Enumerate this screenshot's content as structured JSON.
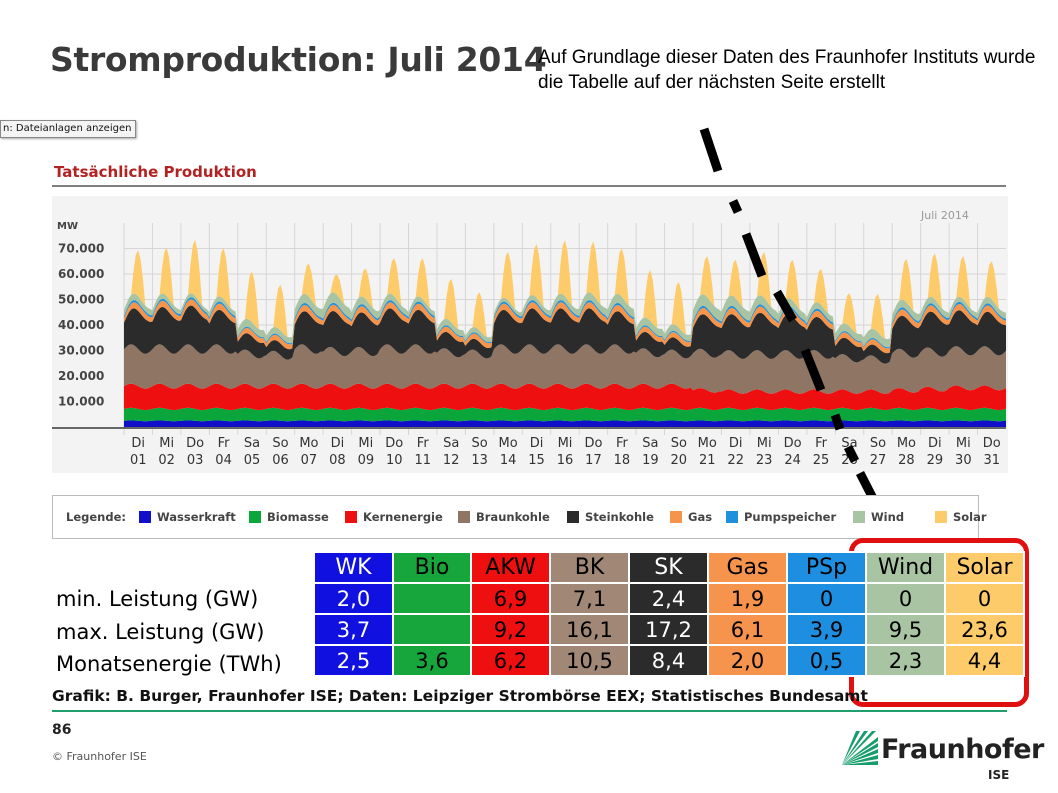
{
  "slide": {
    "title": "Stromproduktion: Juli 2014",
    "annotation": "Auf Grundlage dieser Daten des Fraunhofer Instituts wurde die Tabelle auf der nächsten Seite erstellt",
    "tooltip": "n: Dateianlagen anzeigen",
    "source": "Grafik: B. Burger, Fraunhofer ISE; Daten: Leipziger Strombörse EEX; Statistisches Bundesamt",
    "page_number": "86",
    "copyright": "© Fraunhofer ISE",
    "brand": {
      "name": "Fraunhofer",
      "sub": "ISE"
    }
  },
  "chart_data": {
    "type": "area",
    "title": "Tatsächliche Produktion",
    "period_label": "Juli 2014",
    "ylabel": "MW",
    "ylim": [
      0,
      80000
    ],
    "yticks": [
      "70.000",
      "60.000",
      "50.000",
      "40.000",
      "30.000",
      "20.000",
      "10.000"
    ],
    "ytick_values": [
      70000,
      60000,
      50000,
      40000,
      30000,
      20000,
      10000
    ],
    "grid": true,
    "x_days": [
      {
        "wd": "Di",
        "d": "01"
      },
      {
        "wd": "Mi",
        "d": "02"
      },
      {
        "wd": "Do",
        "d": "03"
      },
      {
        "wd": "Fr",
        "d": "04"
      },
      {
        "wd": "Sa",
        "d": "05"
      },
      {
        "wd": "So",
        "d": "06"
      },
      {
        "wd": "Mo",
        "d": "07"
      },
      {
        "wd": "Di",
        "d": "08"
      },
      {
        "wd": "Mi",
        "d": "09"
      },
      {
        "wd": "Do",
        "d": "10"
      },
      {
        "wd": "Fr",
        "d": "11"
      },
      {
        "wd": "Sa",
        "d": "12"
      },
      {
        "wd": "So",
        "d": "13"
      },
      {
        "wd": "Mo",
        "d": "14"
      },
      {
        "wd": "Di",
        "d": "15"
      },
      {
        "wd": "Mi",
        "d": "16"
      },
      {
        "wd": "Do",
        "d": "17"
      },
      {
        "wd": "Fr",
        "d": "18"
      },
      {
        "wd": "Sa",
        "d": "19"
      },
      {
        "wd": "So",
        "d": "20"
      },
      {
        "wd": "Mo",
        "d": "21"
      },
      {
        "wd": "Di",
        "d": "22"
      },
      {
        "wd": "Mi",
        "d": "23"
      },
      {
        "wd": "Do",
        "d": "24"
      },
      {
        "wd": "Fr",
        "d": "25"
      },
      {
        "wd": "Sa",
        "d": "26"
      },
      {
        "wd": "So",
        "d": "27"
      },
      {
        "wd": "Mo",
        "d": "28"
      },
      {
        "wd": "Di",
        "d": "29"
      },
      {
        "wd": "Mi",
        "d": "30"
      },
      {
        "wd": "Do",
        "d": "31"
      }
    ],
    "legend_title": "Legende:",
    "legend_placement": "bottom",
    "series": [
      {
        "name": "Wasserkraft",
        "color": "#1010c8",
        "daily_mw": [
          2500,
          2500,
          2500,
          2500,
          2500,
          2500,
          2500,
          2500,
          2500,
          2500,
          2500,
          2500,
          2500,
          2500,
          2500,
          2500,
          2500,
          2500,
          2500,
          2500,
          2500,
          2500,
          2500,
          2500,
          2500,
          2500,
          2500,
          2500,
          2500,
          2500,
          2500
        ]
      },
      {
        "name": "Biomasse",
        "color": "#0aa63c",
        "daily_mw": [
          4800,
          4800,
          4800,
          4800,
          4800,
          4800,
          4800,
          4800,
          4800,
          4800,
          4800,
          4800,
          4800,
          4800,
          4800,
          4800,
          4800,
          4800,
          4800,
          4800,
          4800,
          4800,
          4800,
          4800,
          4800,
          4800,
          4800,
          4800,
          4800,
          4800,
          4800
        ]
      },
      {
        "name": "Kernenergie",
        "color": "#ee1010",
        "daily_mw": [
          9200,
          9200,
          9200,
          9200,
          9200,
          9200,
          9200,
          9200,
          9200,
          9200,
          9200,
          9200,
          9200,
          9200,
          9200,
          9200,
          9200,
          9200,
          9200,
          9200,
          7500,
          7000,
          7000,
          7000,
          7000,
          7000,
          7000,
          7500,
          8000,
          8500,
          8500
        ]
      },
      {
        "name": "Braunkohle",
        "color": "#8f7563",
        "daily_mw": [
          15000,
          15000,
          15000,
          15000,
          13000,
          12500,
          15000,
          14000,
          14000,
          15000,
          15000,
          13500,
          13000,
          15000,
          15000,
          15000,
          15000,
          15000,
          13500,
          13000,
          15000,
          15000,
          15000,
          15000,
          15000,
          13500,
          13000,
          15000,
          15000,
          15000,
          15000
        ]
      },
      {
        "name": "Steinkohle",
        "color": "#2b2b2b",
        "daily_mw": [
          13000,
          13500,
          14000,
          12500,
          6000,
          4000,
          12000,
          13000,
          12500,
          13000,
          12500,
          6000,
          4000,
          12500,
          13000,
          13000,
          13000,
          12000,
          6000,
          4500,
          12500,
          13000,
          13500,
          13000,
          12000,
          6000,
          4000,
          12000,
          13000,
          13000,
          12500
        ]
      },
      {
        "name": "Gas",
        "color": "#f5944a",
        "daily_mw": [
          2200,
          2200,
          2200,
          2200,
          1900,
          1900,
          2200,
          2200,
          2200,
          2200,
          2200,
          1900,
          1900,
          2200,
          2200,
          2200,
          2200,
          2200,
          1900,
          1900,
          2200,
          2200,
          2200,
          2200,
          2200,
          1900,
          1900,
          2200,
          2200,
          2200,
          2200
        ]
      },
      {
        "name": "Pumpspeicher",
        "color": "#1e90dc",
        "daily_mw": [
          800,
          800,
          800,
          800,
          500,
          500,
          800,
          800,
          800,
          800,
          800,
          500,
          500,
          800,
          800,
          800,
          800,
          800,
          500,
          500,
          800,
          800,
          800,
          800,
          800,
          500,
          500,
          800,
          800,
          800,
          800
        ]
      },
      {
        "name": "Wind",
        "color": "#a9c4a2",
        "daily_mw": [
          2500,
          2000,
          1500,
          2000,
          3000,
          2500,
          3500,
          4000,
          3000,
          2500,
          2000,
          2500,
          2000,
          1500,
          2000,
          2500,
          3000,
          3500,
          3000,
          2500,
          4500,
          4000,
          3500,
          3000,
          2500,
          3000,
          3500,
          3000,
          2500,
          2000,
          2500
        ]
      },
      {
        "name": "Solar",
        "color": "#fdcb6a",
        "daily_peak_mw": [
          18000,
          19000,
          22000,
          20000,
          20000,
          18000,
          13000,
          8000,
          12000,
          15000,
          16000,
          17000,
          15000,
          19000,
          21000,
          22000,
          21000,
          19000,
          20000,
          18000,
          16000,
          15000,
          18000,
          16000,
          14000,
          13000,
          15000,
          17000,
          18000,
          17000,
          15000
        ]
      }
    ]
  },
  "table": {
    "headers": [
      "WK",
      "Bio",
      "AKW",
      "BK",
      "SK",
      "Gas",
      "PSp",
      "Wind",
      "Solar"
    ],
    "header_colors": [
      "#1010e0",
      "#17a63c",
      "#ee1010",
      "#a08776",
      "#2b2b2b",
      "#f6934c",
      "#1e8fe0",
      "#a9c4a2",
      "#fdcb6a"
    ],
    "header_text_colors": [
      "#ffffff",
      "#000000",
      "#000000",
      "#000000",
      "#ffffff",
      "#000000",
      "#000000",
      "#000000",
      "#000000"
    ],
    "cell_colors": [
      "#1010e0",
      "#17a63c",
      "#ee1010",
      "#a08776",
      "#2b2b2b",
      "#f6934c",
      "#1e8fe0",
      "#a9c4a2",
      "#fdcb6a"
    ],
    "cell_text_colors": [
      "#ffffff",
      "#000000",
      "#000000",
      "#000000",
      "#ffffff",
      "#000000",
      "#000000",
      "#000000",
      "#000000"
    ],
    "rows": [
      {
        "label": "min. Leistung (GW)",
        "values": [
          "2,0",
          "",
          "6,9",
          "7,1",
          "2,4",
          "1,9",
          "0",
          "0",
          "0"
        ]
      },
      {
        "label": "max. Leistung (GW)",
        "values": [
          "3,7",
          "",
          "9,2",
          "16,1",
          "17,2",
          "6,1",
          "3,9",
          "9,5",
          "23,6"
        ]
      },
      {
        "label": "Monatsenergie (TWh)",
        "values": [
          "2,5",
          "3,6",
          "6,2",
          "10,5",
          "8,4",
          "2,0",
          "0,5",
          "2,3",
          "4,4"
        ]
      }
    ]
  }
}
